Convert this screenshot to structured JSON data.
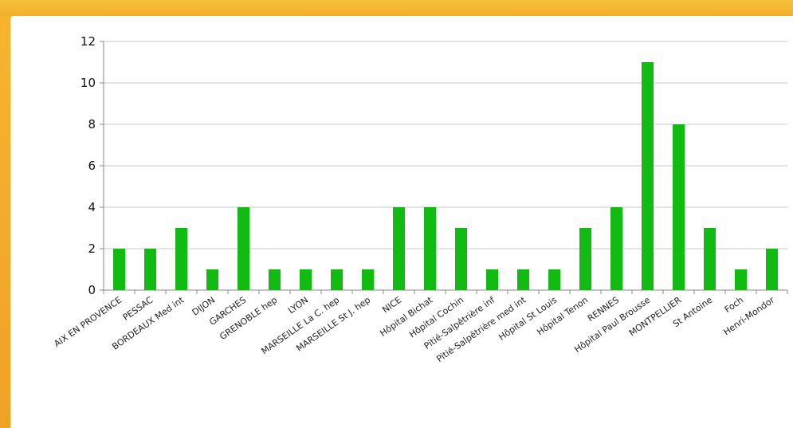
{
  "chart_data": {
    "type": "bar",
    "categories": [
      "AIX EN PROVENCE",
      "PESSAC",
      "BORDEAUX Med int",
      "DIJON",
      "GARCHES",
      "GRENOBLE hep",
      "LYON",
      "MARSEILLE La C. hep",
      "MARSEILLE St J. hep",
      "NICE",
      "Hôpital Bichat",
      "Hôpital Cochin",
      "Pitié-Salpêtrière inf",
      "Pitié-Salpêtrière med int",
      "Hôpital St Louis",
      "Hôpital Tenon",
      "RENNES",
      "Hôpital Paul Brousse",
      "MONTPELLIER",
      "St Antoine",
      "Foch",
      "Henri-Mondor"
    ],
    "values": [
      2,
      2,
      3,
      1,
      4,
      1,
      1,
      1,
      1,
      4,
      4,
      3,
      1,
      1,
      1,
      3,
      4,
      11,
      8,
      3,
      1,
      2
    ],
    "yticks": [
      "0",
      "2",
      "4",
      "6",
      "8",
      "10",
      "12"
    ],
    "ylim": [
      0,
      12
    ],
    "grid": true,
    "bar_color": "#11bb11",
    "grid_color": "#c8c8c8",
    "axis_color": "#888888",
    "background_color": "#f2a92a"
  }
}
